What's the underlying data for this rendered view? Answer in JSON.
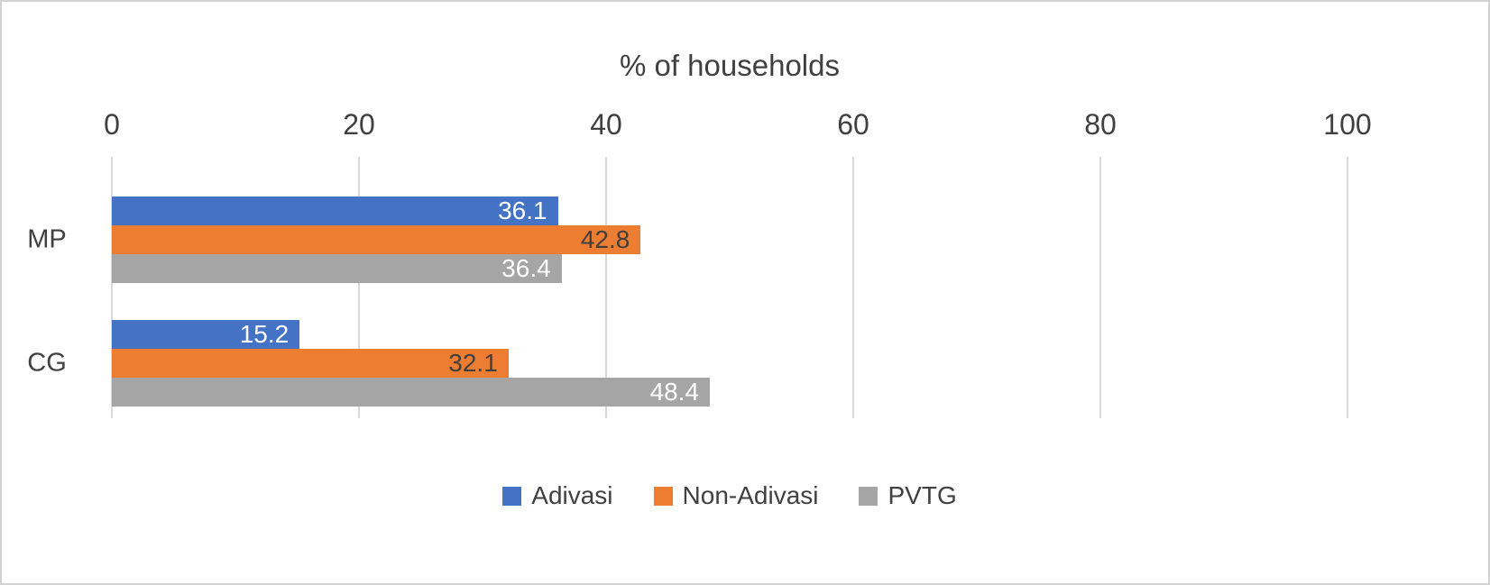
{
  "chart_data": {
    "type": "bar",
    "orientation": "horizontal",
    "title": "% of households",
    "categories": [
      "MP",
      "CG"
    ],
    "series": [
      {
        "name": "Adivasi",
        "color": "#4472C4",
        "label_color": "#FFFFFF",
        "values": [
          36.1,
          15.2
        ]
      },
      {
        "name": "Non-Adivasi",
        "color": "#ED7D31",
        "label_color": "#404040",
        "values": [
          42.8,
          32.1
        ]
      },
      {
        "name": "PVTG",
        "color": "#A5A5A5",
        "label_color": "#FFFFFF",
        "values": [
          36.4,
          48.4
        ]
      }
    ],
    "x_ticks": [
      0,
      20,
      40,
      60,
      80,
      100
    ],
    "xlim": [
      0,
      100
    ],
    "grid": true,
    "legend_position": "bottom"
  },
  "colors": {
    "gridline": "#D9D9D9",
    "axis_text": "#404040",
    "frame_border": "#D2D2D2"
  }
}
